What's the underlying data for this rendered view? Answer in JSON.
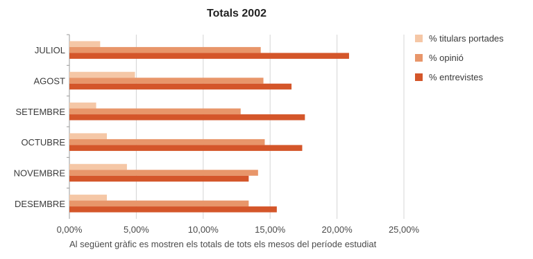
{
  "chart_data": {
    "type": "bar",
    "orientation": "horizontal",
    "title": "Totals 2002",
    "categories": [
      "JULIOL",
      "AGOST",
      "SETEMBRE",
      "OCTUBRE",
      "NOVEMBRE",
      "DESEMBRE"
    ],
    "series": [
      {
        "name": "% titulars portades",
        "color": "#f5c7a6",
        "values": [
          2.3,
          4.9,
          2.0,
          2.8,
          4.3,
          2.8
        ]
      },
      {
        "name": "% opinió",
        "color": "#e8966a",
        "values": [
          14.3,
          14.5,
          12.8,
          14.6,
          14.1,
          13.4
        ]
      },
      {
        "name": "% entrevistes",
        "color": "#d4562a",
        "values": [
          20.9,
          16.6,
          17.6,
          17.4,
          13.4,
          15.5
        ]
      }
    ],
    "xlim": [
      0,
      25
    ],
    "x_ticks": [
      0,
      5,
      10,
      15,
      20,
      25
    ],
    "x_tick_labels": [
      "0,00%",
      "5,00%",
      "10,00%",
      "15,00%",
      "20,00%",
      "25,00%"
    ],
    "grid": true,
    "legend_position": "right"
  },
  "caption": "Al següent gràfic es mostren els totals de tots els mesos del període estudiat"
}
